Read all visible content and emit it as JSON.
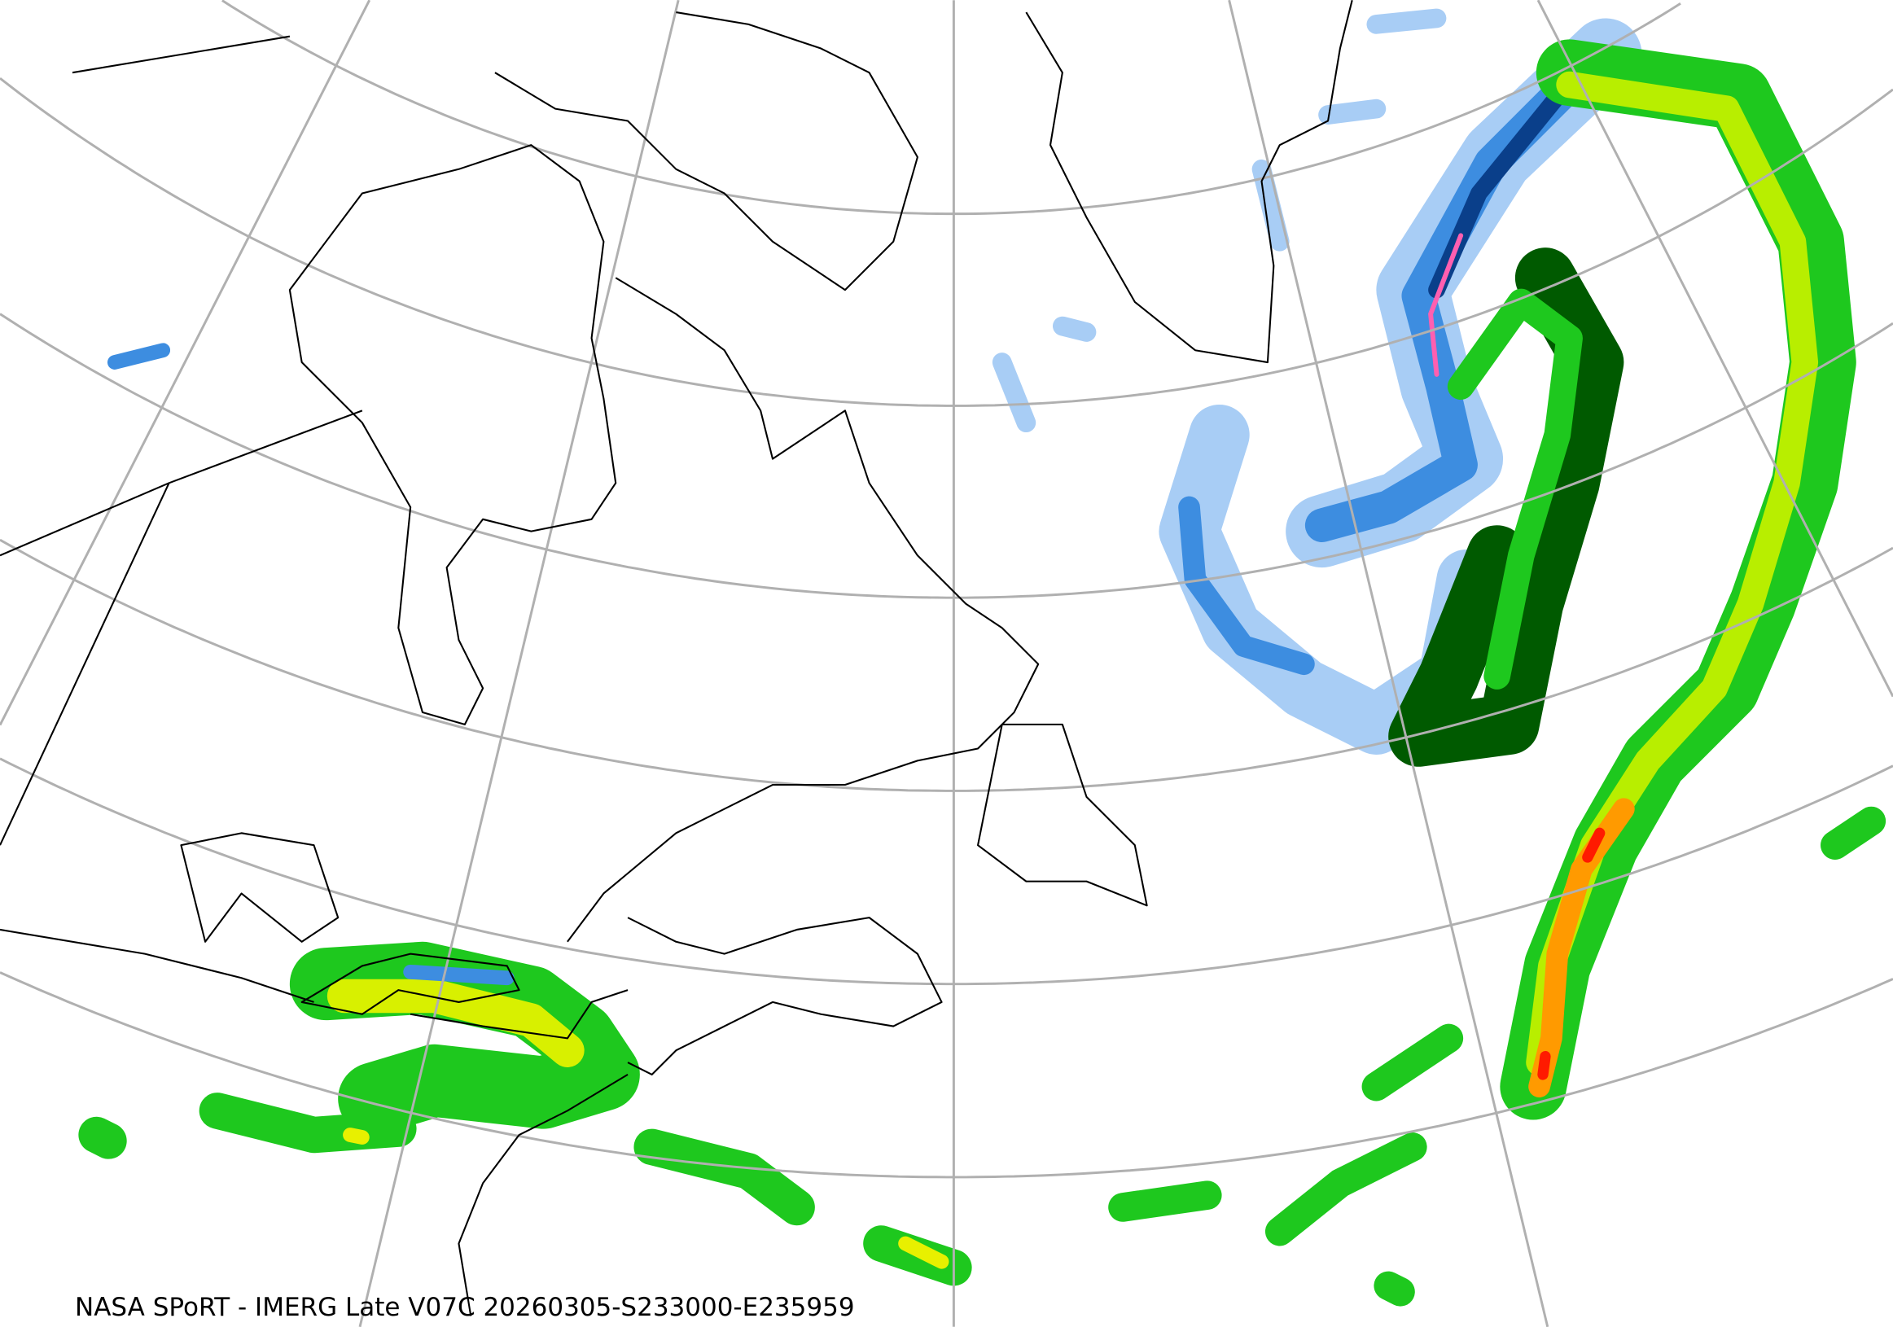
{
  "caption": "NASA SPoRT - IMERG Late V07C 20260305-S233000-E235959",
  "colors": {
    "graticule": "#b0b0b0",
    "coastline": "#000000",
    "precip_light_blue": "#a8cdf5",
    "precip_blue": "#3d8de0",
    "precip_dark_blue": "#0a3f8a",
    "precip_pink": "#ff5fb0",
    "precip_dark_green": "#005a00",
    "precip_green": "#1ec81e",
    "precip_light_green": "#7cf000",
    "precip_yellow": "#e8f000",
    "precip_orange": "#ff9a00",
    "precip_red": "#ff1a00"
  }
}
